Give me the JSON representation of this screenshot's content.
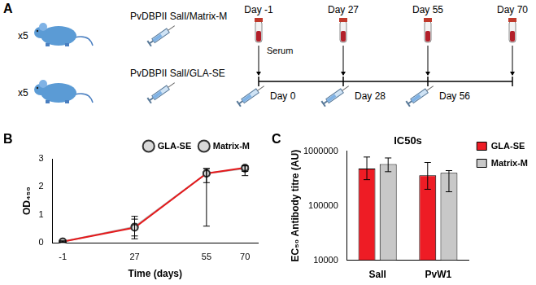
{
  "panel_labels": [
    "A",
    "B",
    "C"
  ],
  "diagram": {
    "groups": [
      {
        "count": "x5",
        "label": "PvDBPII SalI/Matrix-M"
      },
      {
        "count": "x5",
        "label": "PvDBPII SalI/GLA-SE"
      }
    ],
    "serum_label": "Serum",
    "bleeds": [
      "Day -1",
      "Day 27",
      "Day 55",
      "Day 70"
    ],
    "injections": [
      "Day 0",
      "Day 28",
      "Day 56"
    ]
  },
  "chart_data": [
    {
      "type": "line",
      "x_label": "Time (days)",
      "y_label": "OD₄₅₀",
      "x": [
        -1,
        27,
        55,
        70
      ],
      "xlim": [
        -5,
        75
      ],
      "xticks": [
        -1,
        27,
        55,
        70
      ],
      "ylim": [
        0,
        3
      ],
      "yticks": [
        0,
        1,
        2,
        3
      ],
      "grid": false,
      "legend": "upper right",
      "series": [
        {
          "name": "GLA-SE",
          "color": "#e41a1c",
          "marker": "circle",
          "values": [
            0.05,
            0.55,
            2.48,
            2.68
          ],
          "error_low": [
            0.03,
            0.25,
            2.15,
            2.55
          ],
          "error_high": [
            0.07,
            0.85,
            2.65,
            2.75
          ]
        },
        {
          "name": "Matrix-M",
          "color": "#bdbdbd",
          "marker": "circle",
          "values": [
            0.05,
            0.58,
            2.48,
            2.65
          ],
          "error_low": [
            0.03,
            0.15,
            0.6,
            2.4
          ],
          "error_high": [
            0.07,
            0.95,
            2.65,
            2.75
          ]
        }
      ]
    },
    {
      "type": "bar",
      "title": "IC50s",
      "y_label": "EC₅₀ Antibody titre (AU)",
      "categories": [
        "SalI",
        "PvW1"
      ],
      "log": "y",
      "ylim": [
        10000,
        1000000
      ],
      "yticks": [
        10000,
        100000,
        1000000
      ],
      "grid": false,
      "legend": "right",
      "series": [
        {
          "name": "GLA-SE",
          "color": "#ee1c25",
          "values": [
            480000,
            360000
          ],
          "error_low": [
            300000,
            200000
          ],
          "error_high": [
            780000,
            620000
          ]
        },
        {
          "name": "Matrix-M",
          "color": "#c8c8c8",
          "values": [
            580000,
            400000
          ],
          "error_low": [
            420000,
            180000
          ],
          "error_high": [
            750000,
            440000
          ]
        }
      ]
    }
  ]
}
